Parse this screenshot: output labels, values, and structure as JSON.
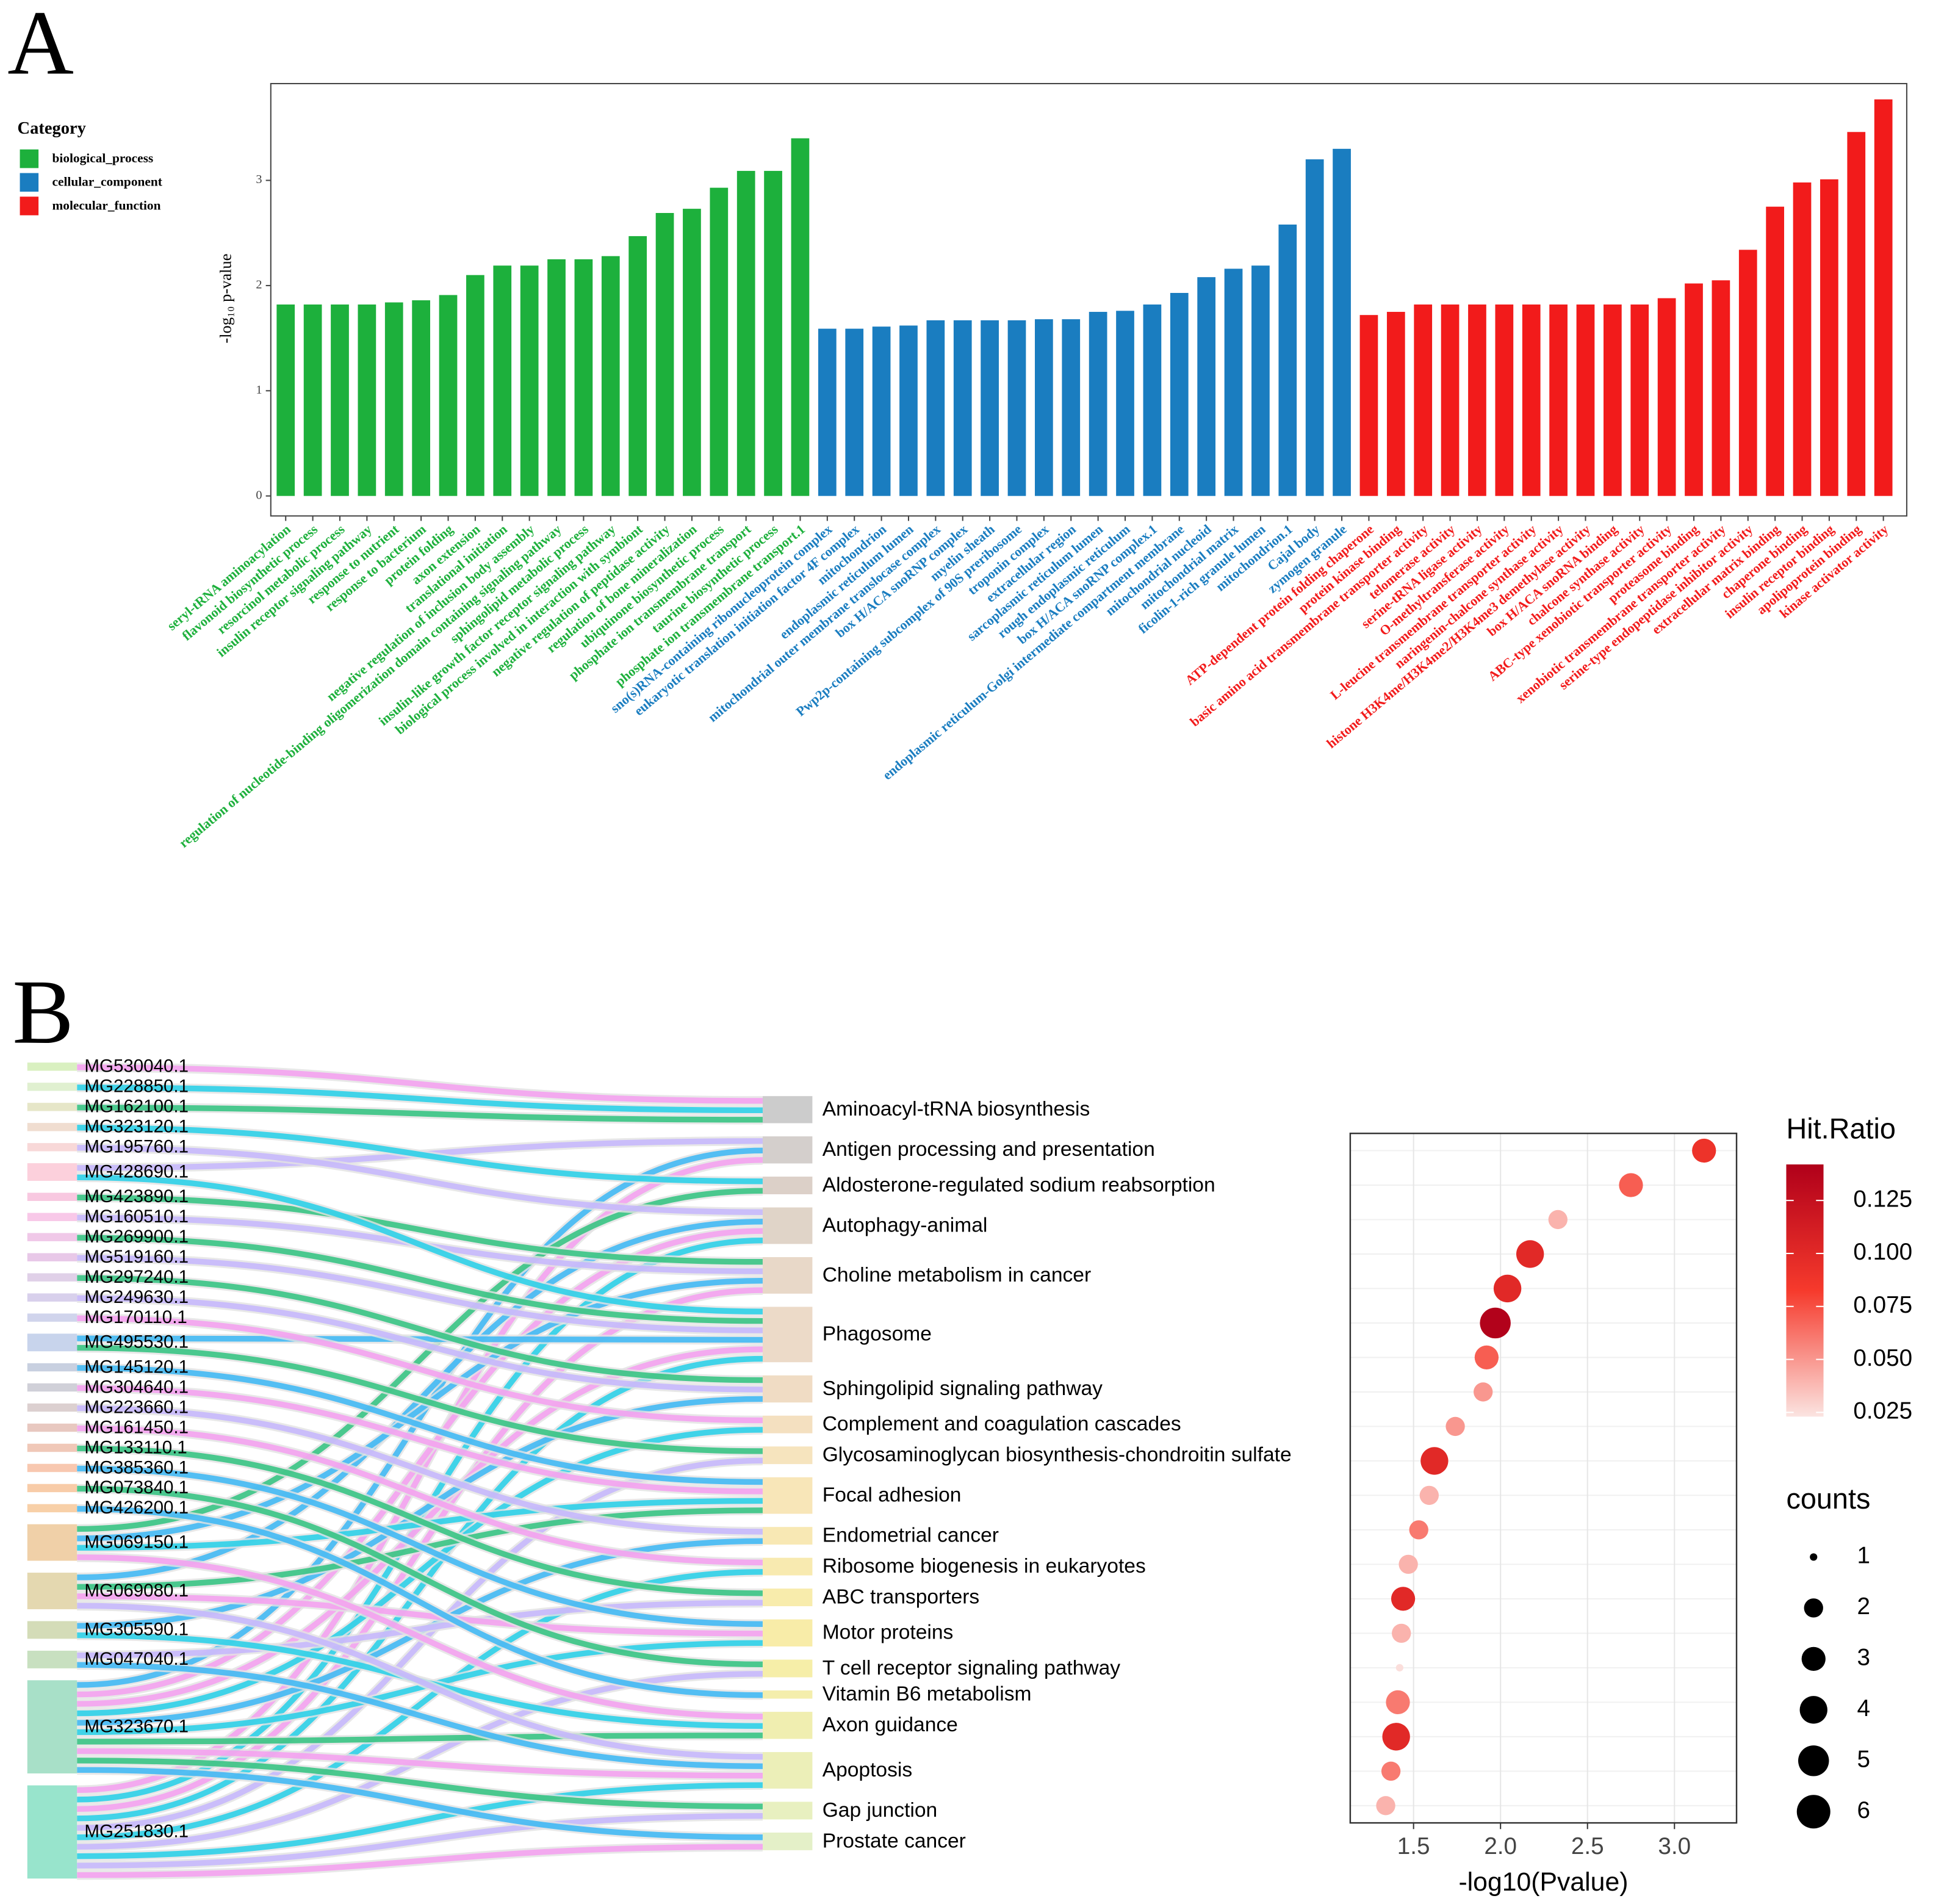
{
  "chart_data": [
    {
      "type": "bar",
      "label": "A",
      "ylabel": "-log₁₀ p-value",
      "legend_title": "Category",
      "legend": "left",
      "ylim": [
        -0.19,
        3.92
      ],
      "yticks": [
        0,
        1,
        2,
        3
      ],
      "series": [
        {
          "name": "biological_process",
          "color": "#1db03c",
          "categories": [
            "seryl-tRNA aminoacylation",
            "flavonoid biosynthetic process",
            "resorcinol metabolic process",
            "insulin receptor signaling pathway",
            "response to nutrient",
            "response to bacterium",
            "protein folding",
            "axon extension",
            "translational initiation",
            "negative regulation of inclusion body assembly",
            "regulation of nucleotide-binding oligomerization domain containing signaling pathway",
            "sphingolipid metabolic process",
            "insulin-like growth factor receptor signaling pathway",
            "biological process involved in interaction with symbiont",
            "negative regulation of peptidase activity",
            "regulation of bone mineralization",
            "ubiquinone biosynthetic process",
            "phosphate ion transmembrane transport",
            "taurine biosynthetic process",
            "phosphate ion transmembrane transport.1"
          ],
          "values": [
            1.82,
            1.82,
            1.82,
            1.82,
            1.84,
            1.86,
            1.91,
            2.1,
            2.19,
            2.19,
            2.25,
            2.25,
            2.28,
            2.47,
            2.69,
            2.73,
            2.93,
            3.09,
            3.09,
            3.4
          ]
        },
        {
          "name": "cellular_component",
          "color": "#1a7dc0",
          "categories": [
            "sno(s)RNA-containing ribonucleoprotein complex",
            "eukaryotic translation initiation factor 4F complex",
            "mitochondrion",
            "endoplasmic reticulum lumen",
            "mitochondrial outer membrane translocase complex",
            "box H/ACA snoRNP complex",
            "myelin sheath",
            "Pwp2p-containing subcomplex of 90S preribosome",
            "troponin complex",
            "extracellular region",
            "sarcoplasmic reticulum lumen",
            "rough endoplasmic reticulum",
            "box H/ACA snoRNP complex.1",
            "endoplasmic reticulum-Golgi intermediate compartment membrane",
            "mitochondrial nucleoid",
            "mitochondrial matrix",
            "ficolin-1-rich granule lumen",
            "mitochondrion.1",
            "Cajal body",
            "zymogen granule"
          ],
          "values": [
            1.59,
            1.59,
            1.61,
            1.62,
            1.67,
            1.67,
            1.67,
            1.67,
            1.68,
            1.68,
            1.75,
            1.76,
            1.82,
            1.93,
            2.08,
            2.16,
            2.19,
            2.58,
            3.2,
            3.3
          ]
        },
        {
          "name": "molecular_function",
          "color": "#f21b1b",
          "categories": [
            "ATP-dependent protein folding chaperone",
            "protein kinase binding",
            "basic amino acid transmembrane transporter activity",
            "telomerase activity",
            "serine-tRNA ligase activity",
            "O-methyltransferase activity",
            "L-leucine transmembrane transporter activity",
            "naringenin-chalcone synthase activity",
            "histone H3K4me/H3K4me2/H3K4me3 demethylase activity",
            "box H/ACA snoRNA binding",
            "chalcone synthase activity",
            "ABC-type xenobiotic transporter activity",
            "proteasome binding",
            "xenobiotic transmembrane transporter activity",
            "serine-type endopeptidase inhibitor activity",
            "extracellular matrix binding",
            "chaperone binding",
            "insulin receptor binding",
            "apolipoprotein binding",
            "kinase activator activity"
          ],
          "values": [
            1.72,
            1.75,
            1.82,
            1.82,
            1.82,
            1.82,
            1.82,
            1.82,
            1.82,
            1.82,
            1.82,
            1.88,
            2.02,
            2.05,
            2.34,
            2.75,
            2.98,
            3.01,
            3.46,
            3.77
          ]
        }
      ]
    },
    {
      "type": "sankey",
      "label": "B",
      "left_nodes": [
        "MG530040.1",
        "MG228850.1",
        "MG162100.1",
        "MG323120.1",
        "MG195760.1",
        "MG428690.1",
        "MG423890.1",
        "MG160510.1",
        "MG269900.1",
        "MG519160.1",
        "MG297240.1",
        "MG249630.1",
        "MG170110.1",
        "MG495530.1",
        "MG145120.1",
        "MG304640.1",
        "MG223660.1",
        "MG161450.1",
        "MG133110.1",
        "MG385360.1",
        "MG073840.1",
        "MG426200.1",
        "MG069150.1",
        "MG069080.1",
        "MG305590.1",
        "MG047040.1",
        "MG323670.1",
        "MG251830.1"
      ],
      "left_colors": [
        "#d9f0c0",
        "#e0f0d0",
        "#e6e6c8",
        "#f0ddd0",
        "#f8d8d8",
        "#fcd0dc",
        "#f8c8e0",
        "#f8c8e8",
        "#f0c8e8",
        "#e8c8e8",
        "#e0d0e8",
        "#d8d0ec",
        "#d0d4ec",
        "#c8d4ec",
        "#c8d0e0",
        "#d0d0d8",
        "#dcd0d0",
        "#e8c8c0",
        "#f0c8b8",
        "#f8c8b0",
        "#f8cca8",
        "#f8d0a8",
        "#f0d0a8",
        "#e4d8b0",
        "#d4dcb8",
        "#c8e0c0",
        "#a8e0c8",
        "#98e4cc"
      ],
      "right_nodes": [
        "Aminoacyl-tRNA biosynthesis",
        "Antigen processing and presentation",
        "Aldosterone-regulated sodium reabsorption",
        "Autophagy-animal",
        "Choline metabolism in cancer",
        "Phagosome",
        "Sphingolipid signaling pathway",
        "Complement and coagulation cascades",
        "Glycosaminoglycan biosynthesis-chondroitin sulfate",
        "Focal adhesion",
        "Endometrial cancer",
        "Ribosome biogenesis in eukaryotes",
        "ABC transporters",
        "Motor proteins",
        "T cell receptor signaling pathway",
        "Vitamin B6 metabolism",
        "Axon guidance",
        "Apoptosis",
        "Gap junction",
        "Prostate cancer"
      ],
      "right_colors": [
        "#cccccc",
        "#d4cfcc",
        "#dcd0c8",
        "#e0d4c8",
        "#e8d8c8",
        "#ecdac8",
        "#f0dcc4",
        "#f4e0c0",
        "#f6e4be",
        "#f8e6b8",
        "#f8e8b4",
        "#f8eab0",
        "#f8ecac",
        "#f8eca8",
        "#f6eea8",
        "#f4eeac",
        "#f0eeb0",
        "#ecefb8",
        "#e8f0c0",
        "#e4f0c8"
      ],
      "links": [
        [
          0,
          0
        ],
        [
          1,
          0
        ],
        [
          2,
          0
        ],
        [
          5,
          1
        ],
        [
          26,
          1
        ],
        [
          27,
          1
        ],
        [
          3,
          2
        ],
        [
          22,
          2
        ],
        [
          4,
          3
        ],
        [
          23,
          3
        ],
        [
          26,
          3
        ],
        [
          27,
          3
        ],
        [
          6,
          4
        ],
        [
          7,
          4
        ],
        [
          22,
          4
        ],
        [
          27,
          4
        ],
        [
          5,
          5
        ],
        [
          8,
          5
        ],
        [
          9,
          5
        ],
        [
          13,
          5
        ],
        [
          26,
          5
        ],
        [
          27,
          5
        ],
        [
          10,
          6
        ],
        [
          11,
          6
        ],
        [
          24,
          6
        ],
        [
          12,
          7
        ],
        [
          26,
          7
        ],
        [
          13,
          8
        ],
        [
          27,
          8
        ],
        [
          14,
          9
        ],
        [
          15,
          9
        ],
        [
          22,
          9
        ],
        [
          23,
          9
        ],
        [
          16,
          10
        ],
        [
          26,
          10
        ],
        [
          17,
          11
        ],
        [
          27,
          11
        ],
        [
          18,
          12
        ],
        [
          25,
          12
        ],
        [
          19,
          13
        ],
        [
          23,
          13
        ],
        [
          26,
          13
        ],
        [
          20,
          14
        ],
        [
          27,
          14
        ],
        [
          21,
          15
        ],
        [
          22,
          16
        ],
        [
          24,
          16
        ],
        [
          26,
          16
        ],
        [
          23,
          17
        ],
        [
          25,
          17
        ],
        [
          26,
          17
        ],
        [
          27,
          17
        ],
        [
          26,
          18
        ],
        [
          27,
          18
        ],
        [
          26,
          19
        ],
        [
          27,
          19
        ]
      ],
      "link_colors": [
        "#f49ef0",
        "#22cfe8",
        "#2ec27e",
        "#c4b5fd",
        "#38b6f4"
      ]
    },
    {
      "type": "dot",
      "xlabel": "-log10(Pvalue)",
      "xlim": [
        1.136,
        3.357
      ],
      "xticks": [
        1.5,
        {
          "value": 2,
          "label": "2.0"
        },
        2.5,
        {
          "value": 3,
          "label": "3.0"
        }
      ],
      "x": [
        3.17,
        2.75,
        2.33,
        2.17,
        2.04,
        1.97,
        1.92,
        1.9,
        1.74,
        1.62,
        1.59,
        1.53,
        1.47,
        1.44,
        1.43,
        1.42,
        1.41,
        1.4,
        1.37,
        1.34
      ],
      "hit_ratio": [
        0.09,
        0.07,
        0.04,
        0.1,
        0.1,
        0.14,
        0.07,
        0.05,
        0.05,
        0.1,
        0.04,
        0.06,
        0.04,
        0.1,
        0.04,
        0.025,
        0.06,
        0.1,
        0.06,
        0.04
      ],
      "counts": [
        3,
        3,
        2,
        4,
        4,
        5,
        3,
        2,
        2,
        4,
        2,
        2,
        2,
        3,
        2,
        1,
        3,
        4,
        2,
        2
      ],
      "color_title": "Hit.Ratio",
      "color_lim": [
        0.023,
        0.142
      ],
      "color_ticks": [
        0.025,
        {
          "value": 0.05,
          "label": "0.050"
        },
        0.075,
        {
          "value": 0.1,
          "label": "0.100"
        },
        0.125
      ],
      "colors": [
        "#fbe4e1",
        "#f63a2c",
        "#b0001a"
      ],
      "size_title": "counts",
      "size_ticks": [
        1,
        2,
        3,
        4,
        5,
        6
      ]
    }
  ]
}
